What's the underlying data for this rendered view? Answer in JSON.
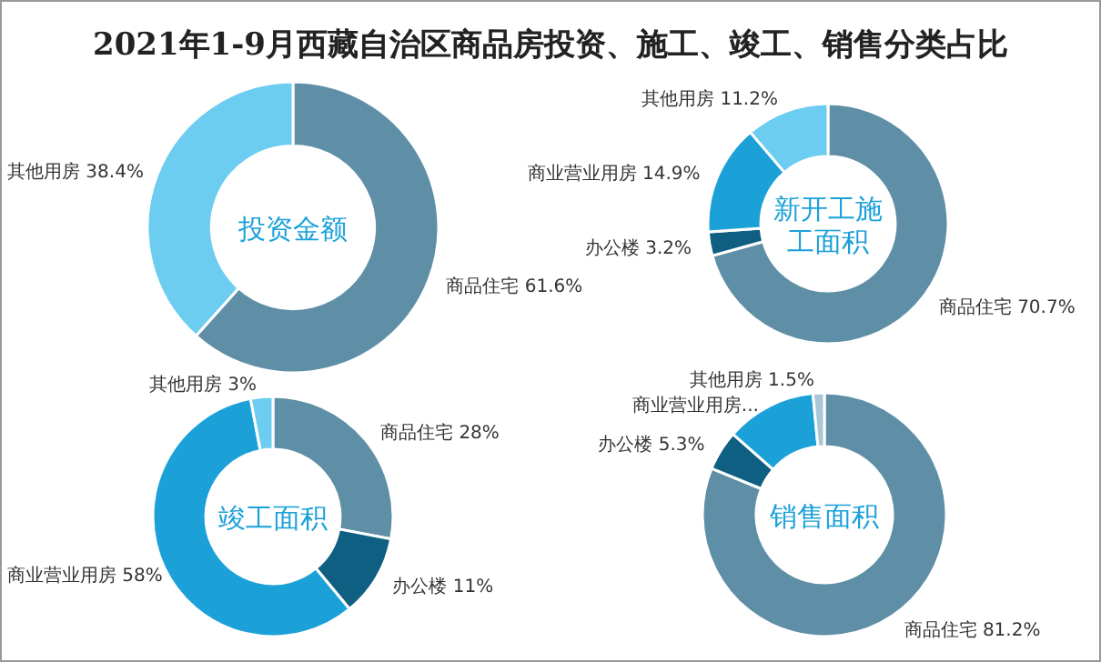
{
  "chart_data": [
    {
      "type": "donut",
      "title": "投资金额",
      "annotations": [
        "2021年1-9月西藏自治区商品房投资、施工、竣工、销售分类占比"
      ],
      "categories": [
        "商品住宅",
        "其他用房"
      ],
      "values": [
        61.6,
        38.4
      ],
      "value_labels": [
        "61.6%",
        "38.4%"
      ],
      "colors": [
        "#5f8fa6",
        "#6ccdf0"
      ]
    },
    {
      "type": "donut",
      "title": "新开工施工面积",
      "categories": [
        "商品住宅",
        "办公楼",
        "商业营业用房",
        "其他用房"
      ],
      "values": [
        70.7,
        3.2,
        14.9,
        11.2
      ],
      "value_labels": [
        "70.7%",
        "3.2%",
        "14.9%",
        "11.2%"
      ],
      "colors": [
        "#5f8fa6",
        "#0f5f82",
        "#1ba1d8",
        "#6ccdf0"
      ]
    },
    {
      "type": "donut",
      "title": "竣工面积",
      "categories": [
        "商品住宅",
        "办公楼",
        "商业营业用房",
        "其他用房"
      ],
      "values": [
        28,
        11,
        58,
        3
      ],
      "value_labels": [
        "28%",
        "11%",
        "58%",
        "3%"
      ],
      "colors": [
        "#5f8fa6",
        "#0f5f82",
        "#1ba1d8",
        "#6ccdf0"
      ]
    },
    {
      "type": "donut",
      "title": "销售面积",
      "categories": [
        "商品住宅",
        "办公楼",
        "商业营业用房",
        "其他用房"
      ],
      "values": [
        81.2,
        5.3,
        12.0,
        1.5
      ],
      "value_labels": [
        "81.2%",
        "5.3%",
        "...",
        "1.5%"
      ],
      "colors": [
        "#5f8fa6",
        "#0f5f82",
        "#1ba1d8",
        "#a9c7d6"
      ]
    }
  ]
}
